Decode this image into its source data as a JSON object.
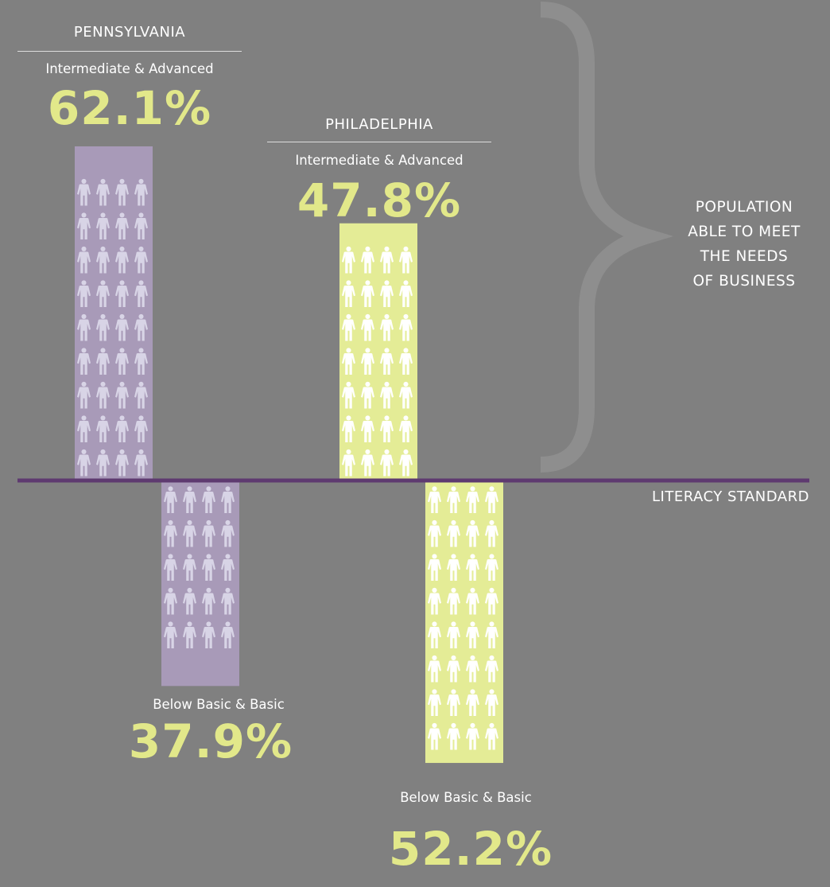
{
  "colors": {
    "background": "#808080",
    "pennsylvania_bar": "#a89ab8",
    "pennsylvania_person": "#d8d4e6",
    "philadelphia_bar": "#e4ec96",
    "philadelphia_person": "#ffffff",
    "percent_text": "#e2e88a",
    "baseline": "#5e3a70",
    "brace": "#8e8e8e"
  },
  "icons": {
    "person": "person-icon",
    "brace": "curly-brace-icon"
  },
  "labels": {
    "pennsylvania": "PENNSYLVANIA",
    "philadelphia": "PHILADELPHIA",
    "above_label": "Intermediate & Advanced",
    "below_label": "Below Basic & Basic",
    "population_line1": "POPULATION",
    "population_line2": "ABLE TO MEET",
    "population_line3": "THE NEEDS",
    "population_line4": "OF BUSINESS",
    "baseline": "LITERACY STANDARD"
  },
  "chart_data": {
    "type": "bar",
    "categories": [
      "PENNSYLVANIA",
      "PHILADELPHIA"
    ],
    "series": [
      {
        "name": "Intermediate & Advanced",
        "values": [
          62.1,
          47.8
        ],
        "labels": [
          "62.1%",
          "47.8%"
        ]
      },
      {
        "name": "Below Basic & Basic",
        "values": [
          37.9,
          52.2
        ],
        "labels": [
          "37.9%",
          "52.2%"
        ]
      }
    ],
    "unit": "%",
    "baseline_label": "LITERACY STANDARD",
    "annotation": "POPULATION ABLE TO MEET THE NEEDS OF BUSINESS"
  }
}
